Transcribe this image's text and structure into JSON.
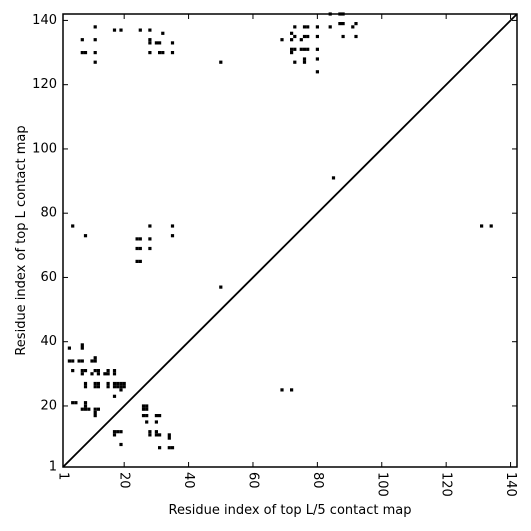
{
  "chart_data": {
    "type": "scatter",
    "subtype": "contact-map",
    "xlabel": "Residue index of top L/5 contact map",
    "ylabel": "Residue index of top L contact map",
    "xlim": [
      1,
      142
    ],
    "ylim": [
      1,
      142
    ],
    "xticks": [
      1,
      20,
      40,
      60,
      80,
      100,
      120,
      140
    ],
    "yticks": [
      1,
      20,
      40,
      60,
      80,
      100,
      120,
      140
    ],
    "xtick_labels": [
      "1",
      "20",
      "40",
      "60",
      "80",
      "100",
      "120",
      "140"
    ],
    "ytick_labels": [
      "1",
      "20",
      "40",
      "60",
      "80",
      "100",
      "120",
      "140"
    ],
    "xtick_rotation": -90,
    "diagonal": true,
    "grid": false,
    "marker": "filled-square",
    "marker_color": "#000000",
    "series": [
      {
        "points": [
          [
            7,
            134
          ],
          [
            7,
            130
          ],
          [
            8,
            130
          ],
          [
            11,
            138
          ],
          [
            11,
            134
          ],
          [
            11,
            130
          ],
          [
            11,
            127
          ],
          [
            17,
            137
          ],
          [
            19,
            137
          ],
          [
            25,
            137
          ],
          [
            28,
            137
          ],
          [
            28,
            134
          ],
          [
            28,
            133
          ],
          [
            28,
            130
          ],
          [
            30,
            133
          ],
          [
            31,
            133
          ],
          [
            32,
            136
          ],
          [
            31,
            130
          ],
          [
            32,
            130
          ],
          [
            35,
            133
          ],
          [
            35,
            130
          ],
          [
            50,
            127
          ],
          [
            69,
            134
          ],
          [
            72,
            136
          ],
          [
            72,
            134
          ],
          [
            72,
            131
          ],
          [
            72,
            130
          ],
          [
            73,
            138
          ],
          [
            73,
            135
          ],
          [
            73,
            131
          ],
          [
            73,
            127
          ],
          [
            75,
            134
          ],
          [
            75,
            131
          ],
          [
            76,
            138
          ],
          [
            76,
            135
          ],
          [
            76,
            131
          ],
          [
            76,
            128
          ],
          [
            76,
            127
          ],
          [
            77,
            138
          ],
          [
            77,
            135
          ],
          [
            77,
            131
          ],
          [
            80,
            138
          ],
          [
            80,
            135
          ],
          [
            80,
            131
          ],
          [
            80,
            128
          ],
          [
            80,
            124
          ],
          [
            84,
            142
          ],
          [
            84,
            138
          ],
          [
            87,
            142
          ],
          [
            87,
            139
          ],
          [
            88,
            142
          ],
          [
            88,
            139
          ],
          [
            88,
            135
          ],
          [
            91,
            138
          ],
          [
            92,
            139
          ],
          [
            92,
            135
          ],
          [
            85,
            91
          ],
          [
            4,
            76
          ],
          [
            8,
            73
          ],
          [
            24,
            72
          ],
          [
            25,
            72
          ],
          [
            24,
            69
          ],
          [
            25,
            69
          ],
          [
            24,
            65
          ],
          [
            25,
            65
          ],
          [
            28,
            76
          ],
          [
            28,
            72
          ],
          [
            28,
            69
          ],
          [
            35,
            76
          ],
          [
            35,
            73
          ],
          [
            50,
            57
          ],
          [
            131,
            76
          ],
          [
            134,
            76
          ],
          [
            3,
            38
          ],
          [
            7,
            38
          ],
          [
            7,
            39
          ],
          [
            3,
            34
          ],
          [
            4,
            34
          ],
          [
            6,
            34
          ],
          [
            7,
            34
          ],
          [
            10,
            34
          ],
          [
            11,
            34
          ],
          [
            11,
            35
          ],
          [
            4,
            31
          ],
          [
            7,
            31
          ],
          [
            7,
            30
          ],
          [
            8,
            31
          ],
          [
            10,
            30
          ],
          [
            11,
            31
          ],
          [
            12,
            31
          ],
          [
            12,
            30
          ],
          [
            14,
            30
          ],
          [
            15,
            30
          ],
          [
            15,
            31
          ],
          [
            17,
            31
          ],
          [
            17,
            30
          ],
          [
            8,
            27
          ],
          [
            8,
            26
          ],
          [
            11,
            27
          ],
          [
            11,
            26
          ],
          [
            12,
            27
          ],
          [
            12,
            26
          ],
          [
            15,
            27
          ],
          [
            15,
            26
          ],
          [
            17,
            27
          ],
          [
            17,
            26
          ],
          [
            18,
            27
          ],
          [
            18,
            26
          ],
          [
            19,
            27
          ],
          [
            19,
            26
          ],
          [
            19,
            25
          ],
          [
            20,
            27
          ],
          [
            20,
            26
          ],
          [
            17,
            23
          ],
          [
            69,
            25
          ],
          [
            72,
            25
          ],
          [
            4,
            21
          ],
          [
            5,
            21
          ],
          [
            8,
            21
          ],
          [
            8,
            20
          ],
          [
            7,
            19
          ],
          [
            8,
            19
          ],
          [
            9,
            19
          ],
          [
            11,
            19
          ],
          [
            12,
            19
          ],
          [
            11,
            18
          ],
          [
            11,
            17
          ],
          [
            26,
            20
          ],
          [
            27,
            20
          ],
          [
            26,
            19
          ],
          [
            27,
            19
          ],
          [
            26,
            17
          ],
          [
            27,
            17
          ],
          [
            30,
            17
          ],
          [
            31,
            17
          ],
          [
            27,
            15
          ],
          [
            30,
            15
          ],
          [
            17,
            12
          ],
          [
            18,
            12
          ],
          [
            19,
            12
          ],
          [
            17,
            11
          ],
          [
            28,
            12
          ],
          [
            28,
            11
          ],
          [
            30,
            12
          ],
          [
            31,
            11
          ],
          [
            30,
            11
          ],
          [
            34,
            11
          ],
          [
            34,
            10
          ],
          [
            19,
            8
          ],
          [
            31,
            7
          ],
          [
            34,
            7
          ],
          [
            35,
            7
          ]
        ]
      }
    ]
  }
}
